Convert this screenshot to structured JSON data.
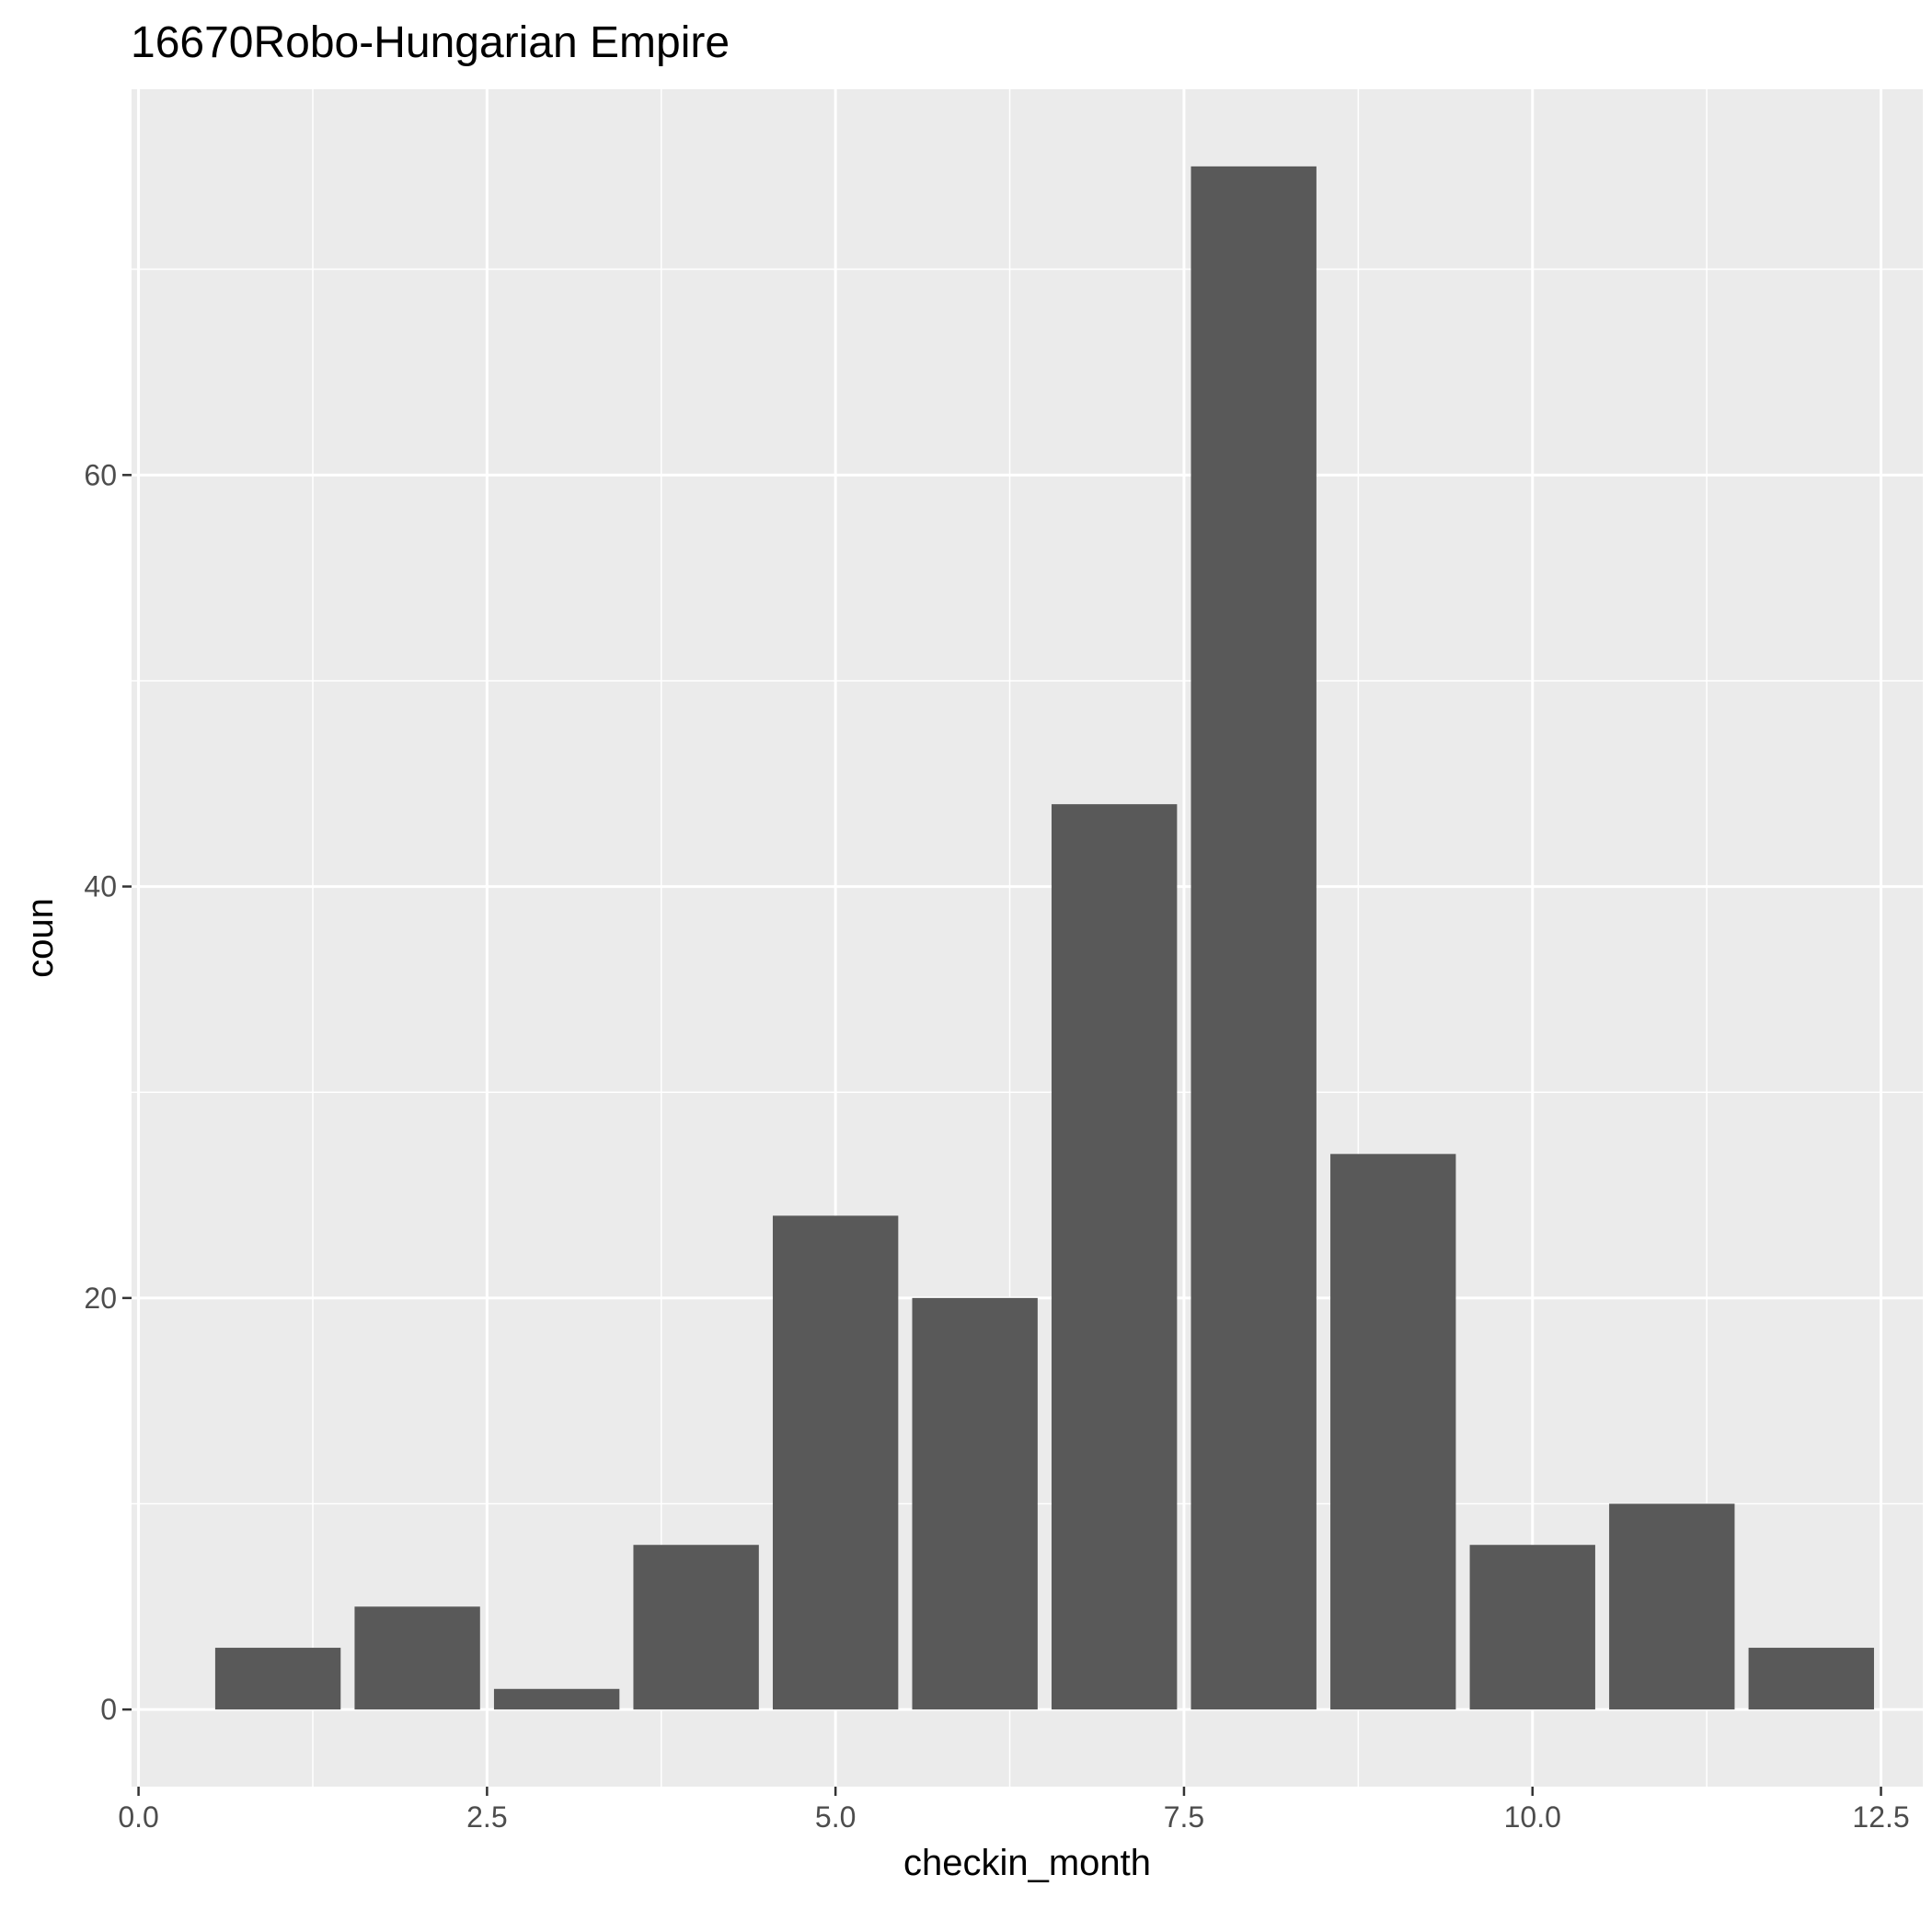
{
  "chart_data": {
    "type": "bar",
    "title": "16670Robo-Hungarian Empire",
    "xlabel": "checkin_month",
    "ylabel": "coun",
    "x": [
      1,
      2,
      3,
      4,
      5,
      6,
      7,
      8,
      9,
      10,
      11,
      12
    ],
    "values": [
      3,
      5,
      1,
      8,
      24,
      20,
      44,
      75,
      27,
      8,
      10,
      3
    ],
    "xlim": [
      -0.05,
      12.8
    ],
    "ylim": [
      -3.75,
      78.75
    ],
    "x_ticks": [
      0,
      2.5,
      5,
      7.5,
      10,
      12.5
    ],
    "x_tick_labels": [
      "0.0",
      "2.5",
      "5.0",
      "7.5",
      "10.0",
      "12.5"
    ],
    "y_ticks": [
      0,
      20,
      40,
      60
    ],
    "y_tick_labels": [
      "0",
      "20",
      "40",
      "60"
    ],
    "grid": true,
    "legend": "none",
    "colors": {
      "bar": "#595959",
      "panel": "#EBEBEB",
      "grid": "#FFFFFF"
    }
  }
}
